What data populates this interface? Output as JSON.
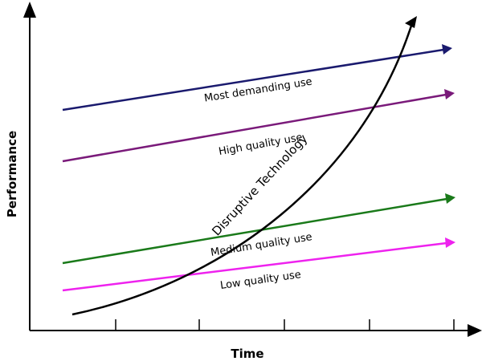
{
  "axes": {
    "x_label": "Time",
    "y_label": "Performance"
  },
  "lines": [
    {
      "label": "Most demanding use",
      "color": "#1a1a6e"
    },
    {
      "label": "High quality use",
      "color": "#7a1a7a"
    },
    {
      "label": "Medium quality use",
      "color": "#1a7a1a"
    },
    {
      "label": "Low quality use",
      "color": "#ee22ee"
    }
  ],
  "curve": {
    "label": "Disruptive Technology",
    "color": "#000000"
  }
}
